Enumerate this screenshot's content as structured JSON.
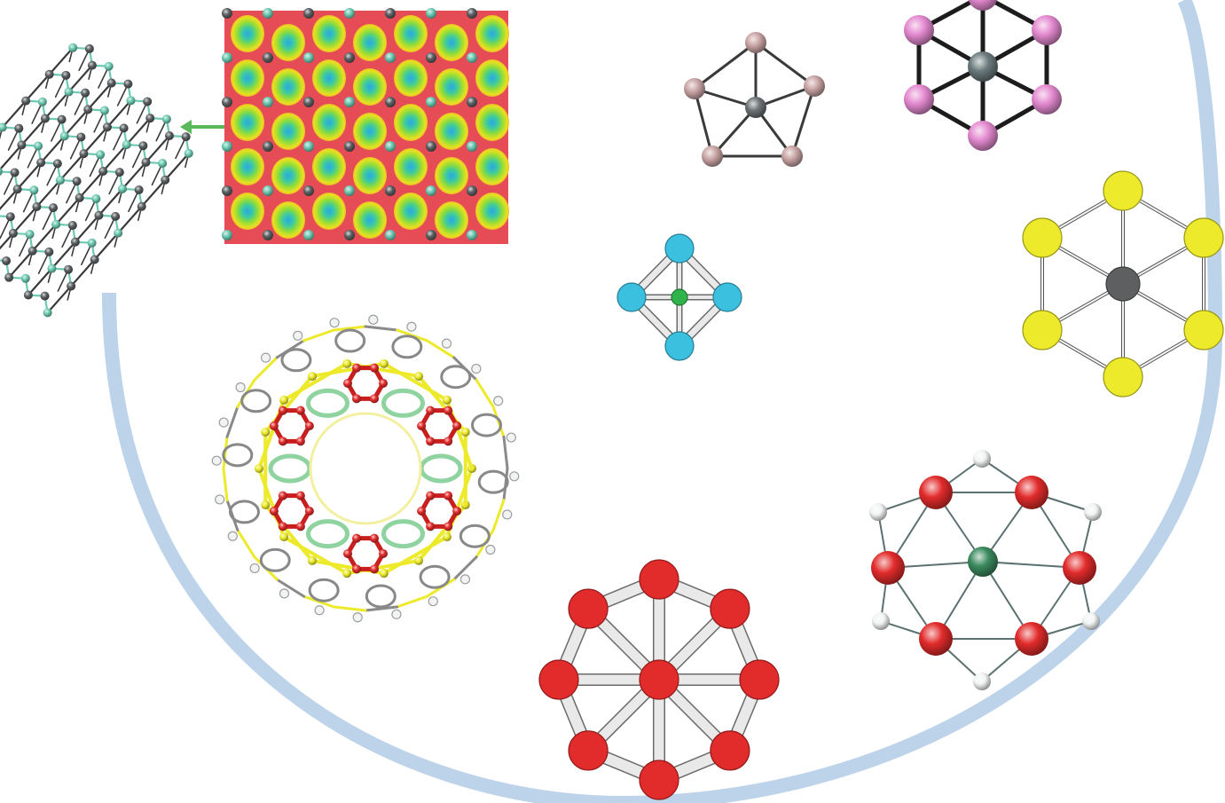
{
  "colors": {
    "arc": "#bcd3ea",
    "bond": "#3a3a3a",
    "bond_light": "#d6d6d6",
    "carbon": "#5a5f61",
    "teal": "#6cc9b2",
    "pink_soft": "#c9a4a4",
    "pink": "#e48ad0",
    "cyan": "#3cc0e0",
    "green": "#2fb34a",
    "yellow": "#ecea2a",
    "red": "#e22b2b",
    "white_atom": "#f2f4f4",
    "green_dark": "#3a8a5e",
    "arrow": "#5bb85b"
  },
  "figure": {
    "panels": [
      {
        "name": "layered-sheet-structure",
        "atoms": [
          "carbon",
          "teal"
        ]
      },
      {
        "name": "electron-localization-map",
        "atoms": [
          "carbon",
          "teal"
        ]
      },
      {
        "name": "pentagonal-cluster",
        "atoms": [
          "carbon",
          "pink_soft"
        ]
      },
      {
        "name": "hexagonal-cluster-pink",
        "atoms": [
          "carbon",
          "pink"
        ]
      },
      {
        "name": "octahedral-cluster",
        "atoms": [
          "green",
          "cyan"
        ]
      },
      {
        "name": "hexagonal-cluster-yellow",
        "atoms": [
          "carbon",
          "yellow"
        ]
      },
      {
        "name": "cage-framework",
        "atoms": [
          "red",
          "yellow",
          "carbon",
          "white_atom"
        ]
      },
      {
        "name": "octagonal-wheel-cluster",
        "atoms": [
          "red"
        ]
      },
      {
        "name": "hexagonal-cluster-with-hydrogens",
        "atoms": [
          "green_dark",
          "red",
          "white_atom"
        ]
      }
    ]
  }
}
